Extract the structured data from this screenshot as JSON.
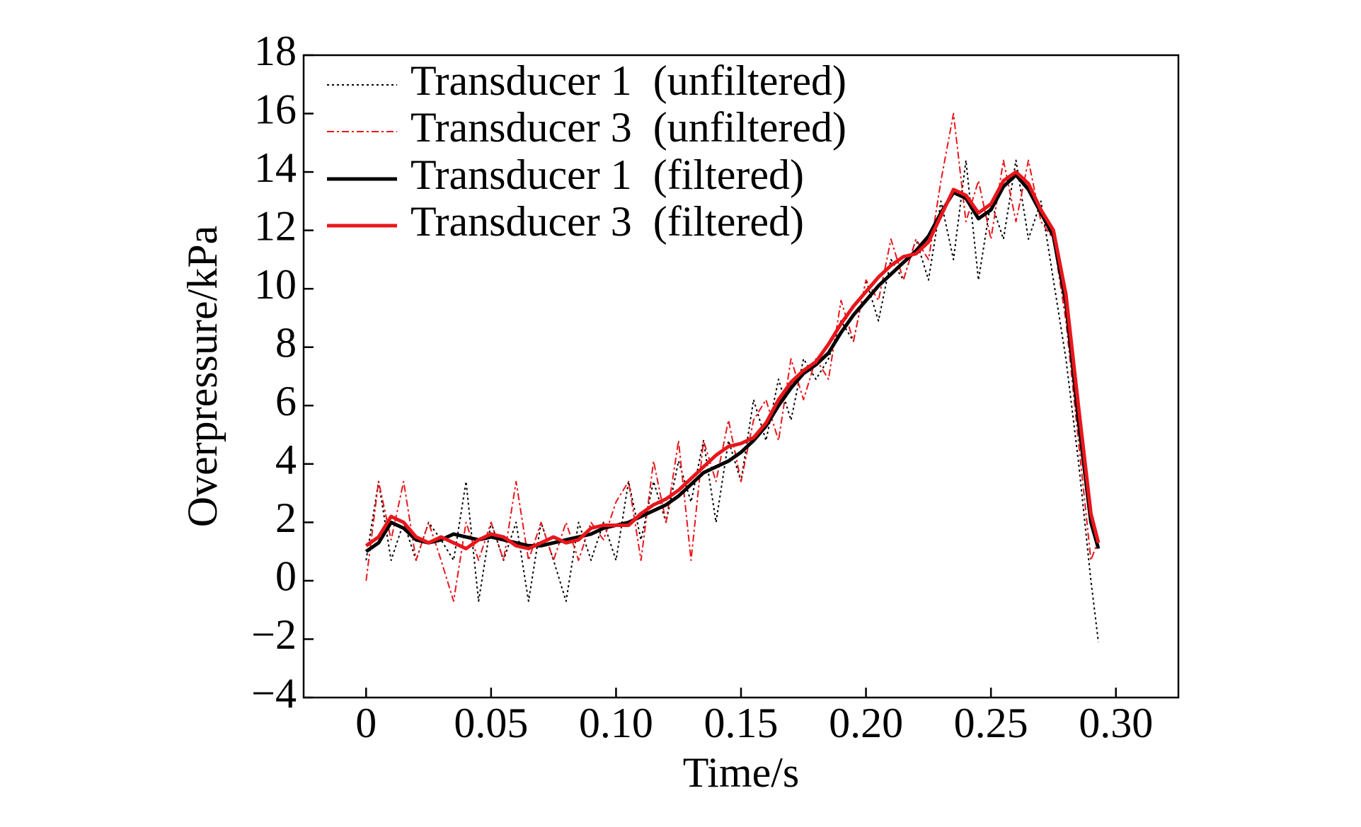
{
  "chart_data": {
    "type": "line",
    "xlabel": "Time/s",
    "ylabel": "Overpressure/kPa",
    "xlim": [
      -0.025,
      0.325
    ],
    "ylim": [
      -4,
      18
    ],
    "xticks": [
      0,
      0.05,
      {
        "value": 0.1,
        "label": "0.10"
      },
      0.15,
      {
        "value": 0.2,
        "label": "0.20"
      },
      0.25,
      {
        "value": 0.3,
        "label": "0.30"
      }
    ],
    "yticks": [
      {
        "value": -4,
        "label": "−4"
      },
      {
        "value": -2,
        "label": "−2"
      },
      0,
      2,
      4,
      6,
      8,
      10,
      12,
      14,
      16,
      18
    ],
    "grid": false,
    "legend": "upper left",
    "x": [
      0,
      0.005,
      0.01,
      0.015,
      0.02,
      0.025,
      0.03,
      0.035,
      0.04,
      0.045,
      0.05,
      0.055,
      0.06,
      0.065,
      0.07,
      0.075,
      0.08,
      0.085,
      0.09,
      0.095,
      0.1,
      0.105,
      0.11,
      0.115,
      0.12,
      0.125,
      0.13,
      0.135,
      0.14,
      0.145,
      0.15,
      0.155,
      0.16,
      0.165,
      0.17,
      0.175,
      0.18,
      0.185,
      0.19,
      0.195,
      0.2,
      0.205,
      0.21,
      0.215,
      0.22,
      0.225,
      0.23,
      0.235,
      0.24,
      0.245,
      0.25,
      0.255,
      0.26,
      0.265,
      0.27,
      0.275,
      0.28,
      0.285,
      0.29,
      0.293
    ],
    "series": [
      {
        "name": "Transducer 1  (unfiltered)",
        "color": "#000000",
        "linestyle": "dotted",
        "values": [
          0.7,
          3.4,
          0.7,
          2.0,
          0.7,
          2.0,
          1.4,
          0.7,
          3.4,
          -0.7,
          2.0,
          0.7,
          2.0,
          -0.7,
          2.0,
          0.7,
          -0.7,
          2.0,
          0.7,
          2.0,
          0.7,
          3.4,
          1.4,
          3.4,
          2.0,
          4.1,
          2.7,
          4.8,
          2.0,
          4.8,
          3.4,
          6.2,
          4.8,
          6.9,
          5.5,
          7.6,
          6.9,
          7.6,
          8.9,
          8.2,
          10.3,
          8.9,
          11.0,
          10.3,
          11.7,
          10.3,
          13.0,
          11.0,
          14.4,
          10.3,
          13.0,
          11.7,
          14.4,
          11.7,
          13.0,
          10.3,
          7.6,
          4.1,
          0.0,
          -2.1
        ]
      },
      {
        "name": "Transducer 3  (unfiltered)",
        "color": "#e8161b",
        "linestyle": "dashdot",
        "values": [
          0.0,
          3.4,
          1.4,
          3.4,
          0.7,
          2.0,
          0.7,
          -0.7,
          2.0,
          0.7,
          2.0,
          0.7,
          3.4,
          0.7,
          2.0,
          0.7,
          2.0,
          0.7,
          2.0,
          1.4,
          2.7,
          3.4,
          0.7,
          4.1,
          2.0,
          4.8,
          0.7,
          4.8,
          3.4,
          5.5,
          3.4,
          5.5,
          6.2,
          4.8,
          7.6,
          6.2,
          7.6,
          6.9,
          9.6,
          8.2,
          10.3,
          9.6,
          11.7,
          10.3,
          11.7,
          11.0,
          13.7,
          16.0,
          12.3,
          13.7,
          11.7,
          14.4,
          12.3,
          14.4,
          12.3,
          11.7,
          8.9,
          4.8,
          0.7,
          1.4
        ]
      },
      {
        "name": "Transducer 1  (filtered)",
        "color": "#000000",
        "linestyle": "solid",
        "values": [
          1.0,
          1.3,
          2.0,
          1.8,
          1.4,
          1.3,
          1.4,
          1.6,
          1.5,
          1.4,
          1.5,
          1.4,
          1.3,
          1.2,
          1.2,
          1.3,
          1.4,
          1.5,
          1.6,
          1.8,
          1.9,
          2.0,
          2.2,
          2.4,
          2.6,
          2.9,
          3.3,
          3.7,
          3.9,
          4.1,
          4.4,
          4.8,
          5.3,
          6.0,
          6.6,
          7.1,
          7.4,
          7.8,
          8.5,
          9.1,
          9.6,
          10.1,
          10.5,
          10.9,
          11.3,
          11.8,
          12.6,
          13.3,
          13.1,
          12.4,
          12.7,
          13.5,
          13.9,
          13.4,
          12.6,
          11.8,
          9.5,
          5.5,
          2.0,
          1.1
        ]
      },
      {
        "name": "Transducer 3  (filtered)",
        "color": "#e8161b",
        "linestyle": "solid",
        "values": [
          1.2,
          1.5,
          2.2,
          2.0,
          1.5,
          1.3,
          1.5,
          1.3,
          1.1,
          1.4,
          1.6,
          1.5,
          1.2,
          1.1,
          1.3,
          1.5,
          1.3,
          1.4,
          1.8,
          1.9,
          1.9,
          1.9,
          2.3,
          2.6,
          2.8,
          3.1,
          3.5,
          3.9,
          4.3,
          4.6,
          4.7,
          4.9,
          5.4,
          6.2,
          6.8,
          7.2,
          7.5,
          8.1,
          8.8,
          9.4,
          9.9,
          10.4,
          10.8,
          11.1,
          11.2,
          11.6,
          12.5,
          13.4,
          13.2,
          12.6,
          12.9,
          13.7,
          14.0,
          13.6,
          12.7,
          12.0,
          9.8,
          6.0,
          2.3,
          1.3
        ]
      }
    ]
  }
}
